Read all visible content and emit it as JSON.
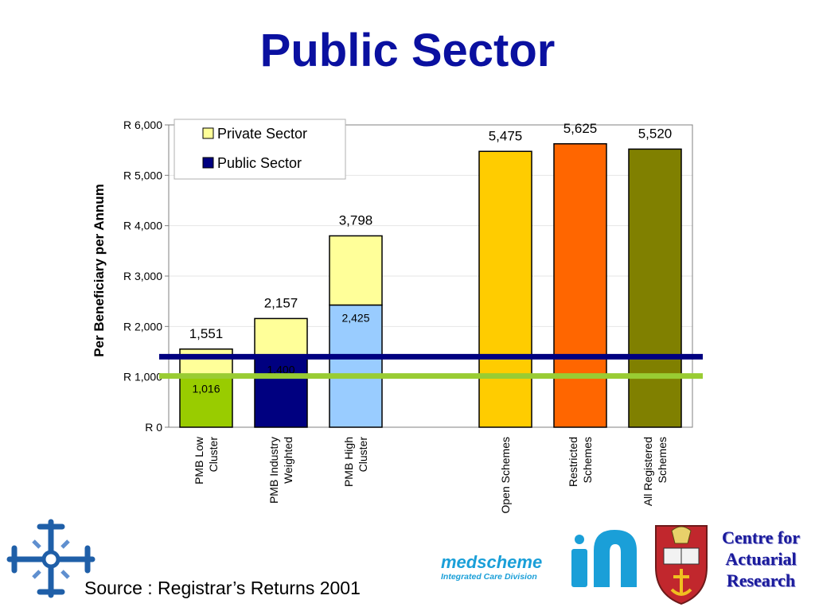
{
  "title": "Public Sector",
  "chart_data": {
    "type": "bar",
    "stacked": true,
    "ylabel": "Per Beneficiary per Annum",
    "ylim": [
      0,
      6000
    ],
    "yticks": [
      0,
      1000,
      2000,
      3000,
      4000,
      5000,
      6000
    ],
    "ytick_labels": [
      "R 0",
      "R 1,000",
      "R 2,000",
      "R 3,000",
      "R 4,000",
      "R 5,000",
      "R 6,000"
    ],
    "grid": true,
    "legend": {
      "placement": "top-left",
      "entries": [
        {
          "name": "Private Sector",
          "color": "#ffff99"
        },
        {
          "name": "Public Sector",
          "color": "#000080"
        }
      ]
    },
    "categories": [
      {
        "label": [
          "PMB Low",
          "Cluster"
        ],
        "total": 1551,
        "total_label": "1,551",
        "segments": [
          {
            "value": 1016,
            "color": "#99cc00",
            "label": "1,016"
          },
          {
            "value": 535,
            "color": "#ffff99"
          }
        ]
      },
      {
        "label": [
          "PMB Industry",
          "Weighted"
        ],
        "total": 2157,
        "total_label": "2,157",
        "segments": [
          {
            "value": 1400,
            "color": "#000080",
            "label": "1,400"
          },
          {
            "value": 757,
            "color": "#ffff99"
          }
        ]
      },
      {
        "label": [
          "PMB High",
          "Cluster"
        ],
        "total": 3798,
        "total_label": "3,798",
        "segments": [
          {
            "value": 2425,
            "color": "#99ccff",
            "label": "2,425"
          },
          {
            "value": 1373,
            "color": "#ffff99"
          }
        ]
      },
      {
        "label": [],
        "total": null,
        "total_label": "",
        "segments": []
      },
      {
        "label": [
          "Open Schemes"
        ],
        "total": 5475,
        "total_label": "5,475",
        "segments": [
          {
            "value": 5475,
            "color": "#ffcc00"
          }
        ]
      },
      {
        "label": [
          "Restricted",
          "Schemes"
        ],
        "total": 5625,
        "total_label": "5,625",
        "segments": [
          {
            "value": 5625,
            "color": "#ff6600"
          }
        ]
      },
      {
        "label": [
          "All Registered",
          "Schemes"
        ],
        "total": 5520,
        "total_label": "5,520",
        "segments": [
          {
            "value": 5520,
            "color": "#808000"
          }
        ]
      }
    ],
    "reference_lines": [
      {
        "value": 1400,
        "color": "#000080"
      },
      {
        "value": 1016,
        "color": "#99cc33"
      }
    ]
  },
  "source": "Source : Registrar’s Returns 2001",
  "logos": {
    "left": "cross-logo-icon",
    "medscheme_name": "medscheme",
    "medscheme_sub": "Integrated Care Division",
    "medi": "medi-mark-icon",
    "crest": "university-crest-icon",
    "car_lines": [
      "Centre for",
      "Actuarial",
      "Research"
    ]
  }
}
